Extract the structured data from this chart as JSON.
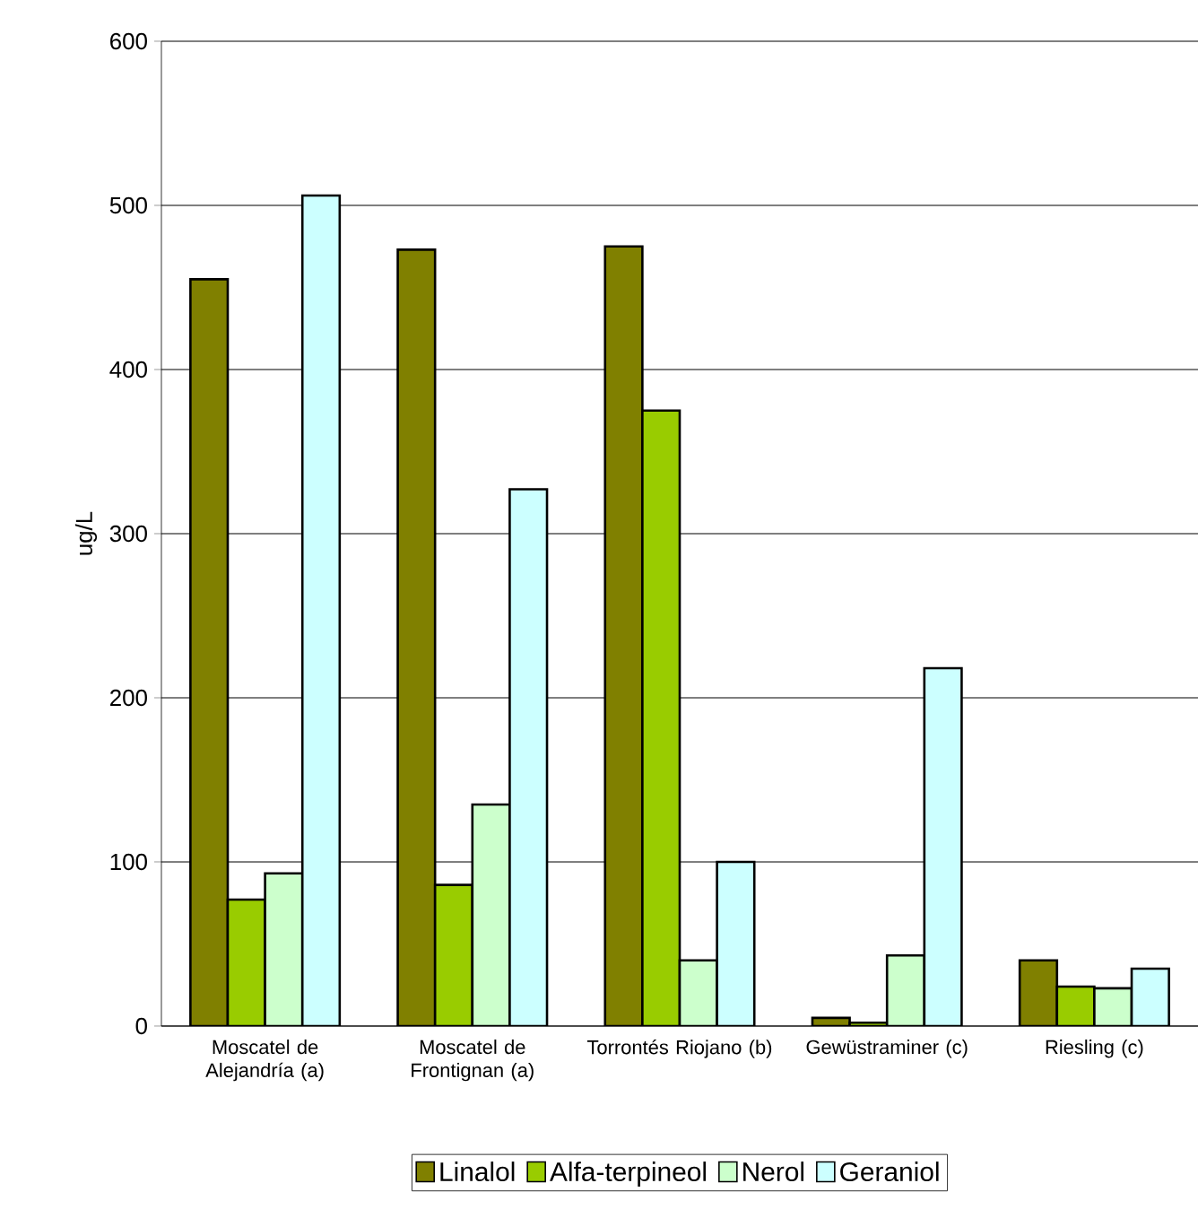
{
  "chart_data": {
    "type": "bar",
    "ylabel": "ug/L",
    "categories": [
      "Moscatel de Alejandría (a)",
      "Moscatel de Frontignan (a)",
      "Torrontés Riojano (b)",
      "Gewüstraminer (c)",
      "Riesling (c)"
    ],
    "series": [
      {
        "name": "Linalol",
        "color": "#808000",
        "values": [
          455,
          473,
          475,
          5,
          40
        ]
      },
      {
        "name": "Alfa-terpineol",
        "color": "#99cc00",
        "values": [
          77,
          86,
          375,
          2,
          24
        ]
      },
      {
        "name": "Nerol",
        "color": "#ccffcc",
        "values": [
          93,
          135,
          40,
          43,
          23
        ]
      },
      {
        "name": "Geraniol",
        "color": "#ccffff",
        "values": [
          506,
          327,
          100,
          218,
          35
        ]
      }
    ],
    "ylim": [
      0,
      600
    ],
    "yticks": [
      0,
      100,
      200,
      300,
      400,
      500,
      600
    ],
    "grid": "y",
    "legend": "bottom"
  }
}
